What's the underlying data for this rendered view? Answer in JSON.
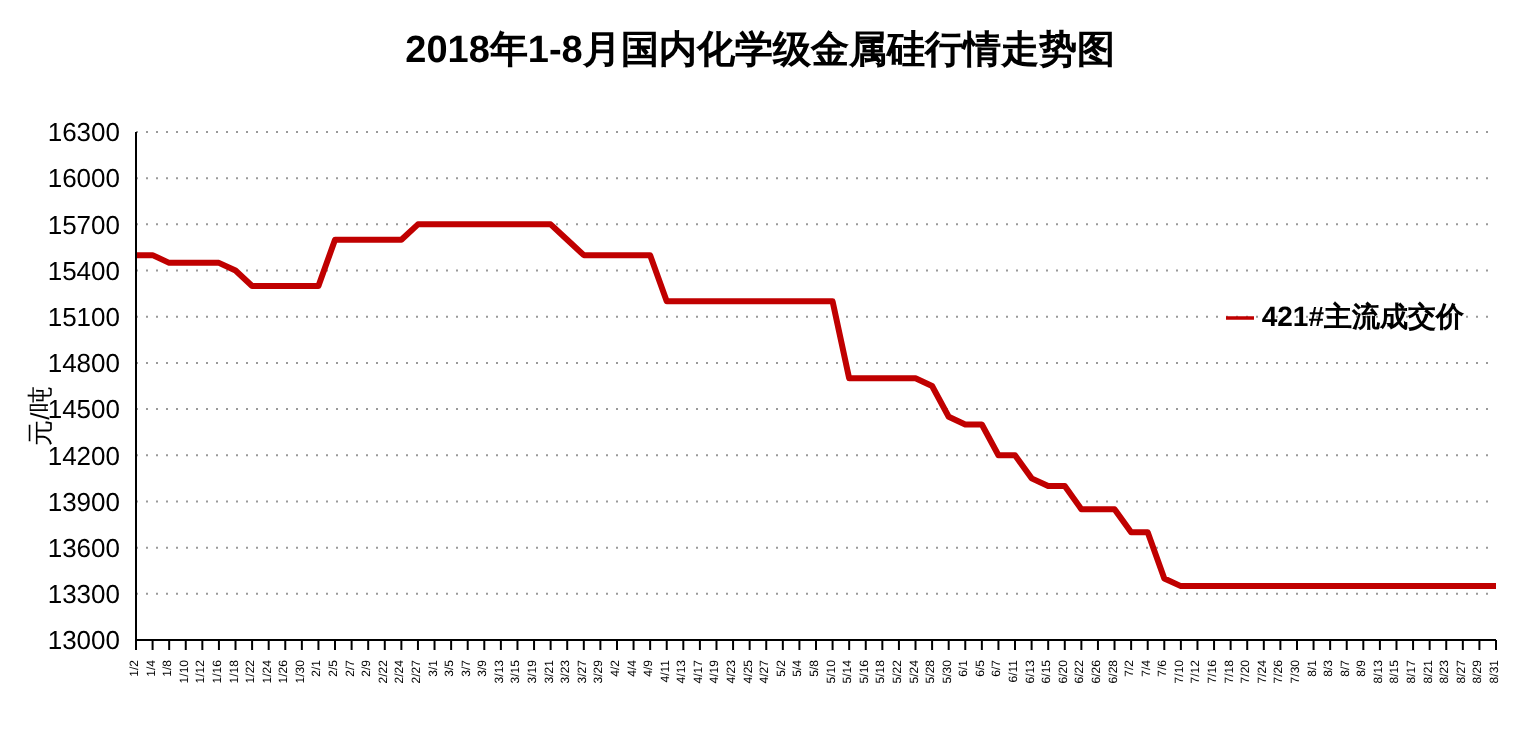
{
  "chart_data": {
    "type": "line",
    "title": "2018年1-8月国内化学级金属硅行情走势图",
    "ylabel": "元/吨",
    "categories": [
      "1/2",
      "1/4",
      "1/8",
      "1/10",
      "1/12",
      "1/16",
      "1/18",
      "1/22",
      "1/24",
      "1/26",
      "1/30",
      "2/1",
      "2/5",
      "2/7",
      "2/9",
      "2/22",
      "2/24",
      "2/27",
      "3/1",
      "3/5",
      "3/7",
      "3/9",
      "3/13",
      "3/15",
      "3/19",
      "3/21",
      "3/23",
      "3/27",
      "3/29",
      "4/2",
      "4/4",
      "4/9",
      "4/11",
      "4/13",
      "4/17",
      "4/19",
      "4/23",
      "4/25",
      "4/27",
      "5/2",
      "5/4",
      "5/8",
      "5/10",
      "5/14",
      "5/16",
      "5/18",
      "5/22",
      "5/24",
      "5/28",
      "5/30",
      "6/1",
      "6/5",
      "6/7",
      "6/11",
      "6/13",
      "6/15",
      "6/20",
      "6/22",
      "6/26",
      "6/28",
      "7/2",
      "7/4",
      "7/6",
      "7/10",
      "7/12",
      "7/16",
      "7/18",
      "7/20",
      "7/24",
      "7/26",
      "7/30",
      "8/1",
      "8/3",
      "8/7",
      "8/9",
      "8/13",
      "8/15",
      "8/17",
      "8/21",
      "8/23",
      "8/27",
      "8/29",
      "8/31"
    ],
    "series": [
      {
        "name": "421#主流成交价",
        "color": "#c00000",
        "values": [
          15500,
          15500,
          15450,
          15450,
          15450,
          15450,
          15400,
          15300,
          15300,
          15300,
          15300,
          15300,
          15600,
          15600,
          15600,
          15600,
          15600,
          15700,
          15700,
          15700,
          15700,
          15700,
          15700,
          15700,
          15700,
          15700,
          15600,
          15500,
          15500,
          15500,
          15500,
          15500,
          15200,
          15200,
          15200,
          15200,
          15200,
          15200,
          15200,
          15200,
          15200,
          15200,
          15200,
          14700,
          14700,
          14700,
          14700,
          14700,
          14650,
          14450,
          14400,
          14400,
          14200,
          14200,
          14050,
          14000,
          14000,
          13850,
          13850,
          13850,
          13700,
          13700,
          13400,
          13350,
          13350,
          13350,
          13350,
          13350,
          13350,
          13350,
          13350,
          13350,
          13350,
          13350,
          13350,
          13350,
          13350,
          13350,
          13350,
          13350,
          13350,
          13350,
          13350
        ]
      }
    ],
    "ylim": [
      13000,
      16300
    ],
    "yticks": [
      13000,
      13300,
      13600,
      13900,
      14200,
      14500,
      14800,
      15100,
      15400,
      15700,
      16000,
      16300
    ],
    "grid": "y",
    "legend": "right",
    "marker": "none",
    "line_style": "solid"
  }
}
